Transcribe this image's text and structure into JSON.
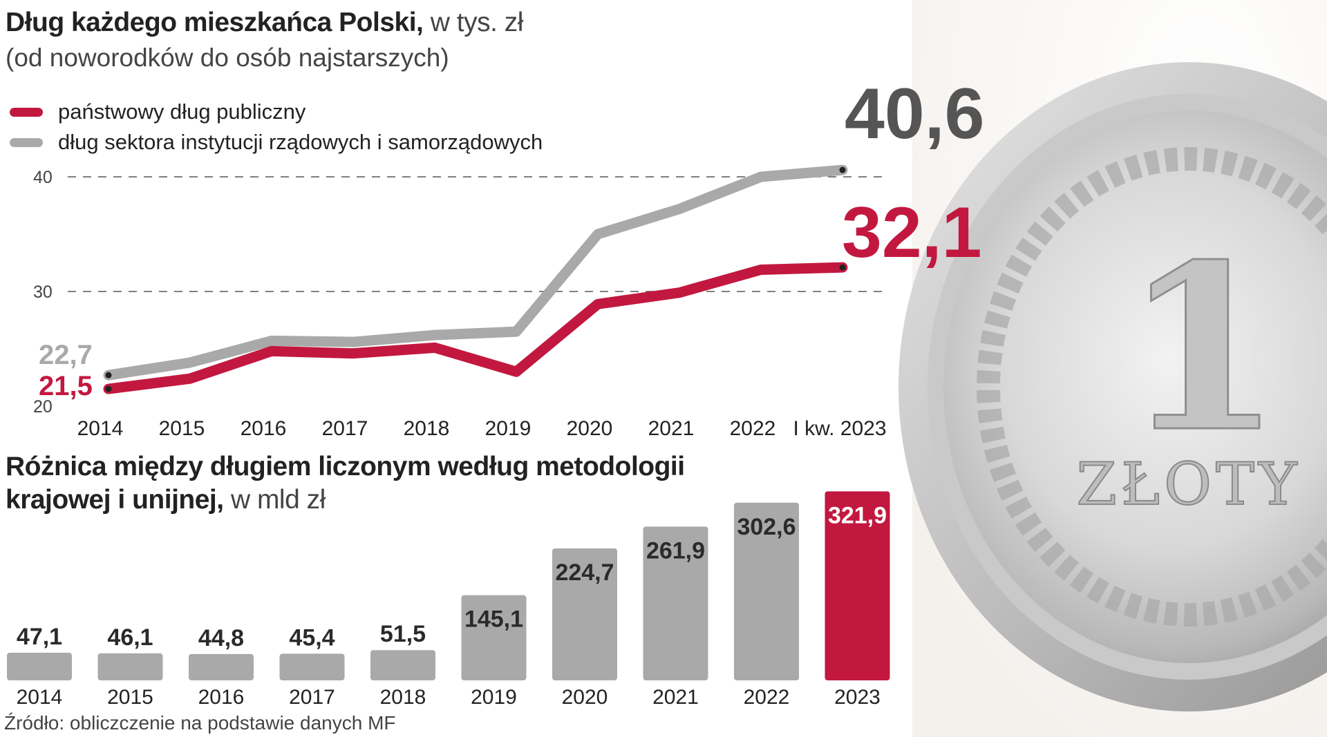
{
  "header": {
    "title_bold": "Dług każdego mieszkańca Polski,",
    "title_light": "w tys. zł",
    "subtitle": "(od noworodków do osób najstarszych)"
  },
  "legend": [
    {
      "label": "państwowy dług publiczny",
      "color": "#c2183f"
    },
    {
      "label": "dług sektora instytucji rządowych i samorządowych",
      "color": "#a9a9a9"
    }
  ],
  "second": {
    "title_bold_1": "Różnica między długiem liczonym według metodologii",
    "title_bold_2": "krajowej  i unijnej,",
    "title_light": "w mld zł"
  },
  "source": "Źródło: obliczczenie na podstawie danych MF",
  "colors": {
    "red": "#c2183f",
    "gray": "#a9a9a9",
    "bar_gray": "#a9a9a9",
    "dark": "#555555"
  },
  "chart_data": [
    {
      "type": "line",
      "x": [
        "2014",
        "2015",
        "2016",
        "2017",
        "2018",
        "2019",
        "2020",
        "2021",
        "2022",
        "I kw. 2023"
      ],
      "yticks": [
        "20",
        "30",
        "40"
      ],
      "ylim": [
        20,
        40
      ],
      "grid": "dashed horizontal at 30 and 40",
      "series": [
        {
          "name": "dług sektora instytucji rządowych i samorządowych",
          "values": [
            22.7,
            23.8,
            25.7,
            25.6,
            26.2,
            26.5,
            35.0,
            37.2,
            40.0,
            40.6
          ],
          "start_label": "22,7",
          "end_label": "40,6"
        },
        {
          "name": "państwowy dług publiczny",
          "values": [
            21.5,
            22.4,
            24.8,
            24.6,
            25.1,
            23.0,
            28.9,
            29.9,
            31.9,
            32.1
          ],
          "start_label": "21,5",
          "end_label": "32,1"
        }
      ]
    },
    {
      "type": "bar",
      "categories": [
        "2014",
        "2015",
        "2016",
        "2017",
        "2018",
        "2019",
        "2020",
        "2021",
        "2022",
        "2023"
      ],
      "values": [
        47.1,
        46.1,
        44.8,
        45.4,
        51.5,
        145.1,
        224.7,
        261.9,
        302.6,
        321.9
      ],
      "value_labels": [
        "47,1",
        "46,1",
        "44,8",
        "45,4",
        "51,5",
        "145,1",
        "224,7",
        "261,9",
        "302,6",
        "321,9"
      ],
      "highlight": "2023"
    }
  ]
}
